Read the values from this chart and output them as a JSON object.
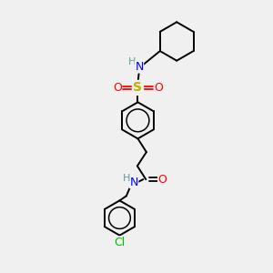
{
  "background_color": "#f0f0f0",
  "bond_color": "#000000",
  "atom_colors": {
    "N": "#0000ff",
    "O": "#ff0000",
    "S": "#ccaa00",
    "Cl": "#00bb00",
    "H_N": "#5f9ea0",
    "C": "#000000"
  },
  "figsize": [
    3.0,
    3.0
  ],
  "dpi": 100
}
